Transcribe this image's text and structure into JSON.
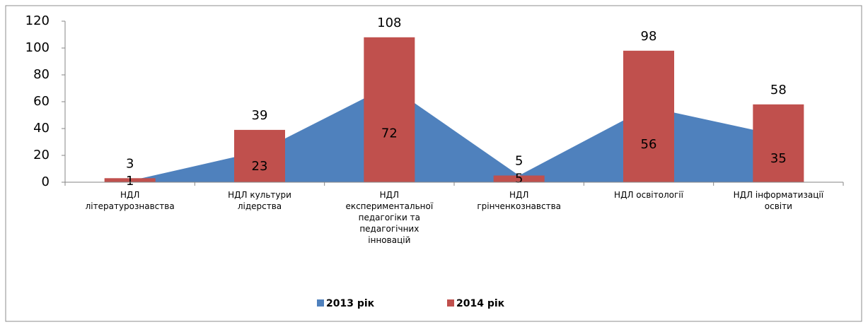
{
  "chart_data": {
    "type": "area-bar",
    "categories": [
      "НДЛ літературознавства",
      "НДЛ культури лідерства",
      "НДЛ експериментальної педагогіки та педагогічних інновацій",
      "НДЛ грінченкознавства",
      "НДЛ освітології",
      "НДЛ інформатизації освіти"
    ],
    "series": [
      {
        "name": "2013 рік",
        "color": "#4f81bd",
        "values": [
          1,
          23,
          72,
          5,
          56,
          35
        ]
      },
      {
        "name": "2014 рік",
        "color": "#c0504d",
        "values": [
          3,
          39,
          108,
          5,
          98,
          58
        ]
      }
    ],
    "ylim": [
      0,
      120
    ],
    "yticks": [
      0,
      20,
      40,
      60,
      80,
      100,
      120
    ],
    "grid": false,
    "legend": "bottom"
  }
}
